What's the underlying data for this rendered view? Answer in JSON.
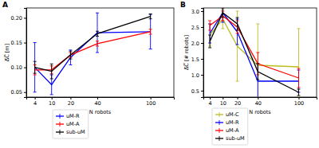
{
  "chart_data": [
    {
      "type": "line",
      "title": "A",
      "xlabel": "N robots",
      "ylabel": "Δ̅C̅ [m]",
      "x": [
        4,
        10,
        20,
        40,
        100
      ],
      "xlim": [
        2,
        135
      ],
      "xticks": [
        4,
        10,
        20,
        40,
        100
      ],
      "ylim": [
        0.04,
        0.22
      ],
      "yticks": [
        0.05,
        {
          "value": 0.1,
          "label": "0.10"
        },
        0.15,
        {
          "value": 0.2,
          "label": "0.20"
        }
      ],
      "grid": false,
      "legend": "below",
      "series": [
        {
          "name": "uM-R",
          "color": "#0000ff",
          "values": [
            0.1,
            0.065,
            0.12,
            0.17,
            0.172
          ],
          "errors": [
            0.05,
            0.02,
            0.015,
            0.04,
            0.035
          ]
        },
        {
          "name": "uM-A",
          "color": "#ff0000",
          "values": [
            0.095,
            0.095,
            0.125,
            0.148,
            0.172
          ],
          "errors": [
            0.01,
            0.008,
            0.005,
            0.005,
            0.005
          ]
        },
        {
          "name": "sub-uM",
          "color": "#000000",
          "values": [
            0.1,
            0.092,
            0.125,
            0.168,
            0.203
          ],
          "errors": [
            0.012,
            0.015,
            0.008,
            0.005,
            0.005
          ]
        }
      ]
    },
    {
      "type": "line",
      "title": "B",
      "xlabel": "N robots",
      "ylabel": "Δ̅C̅ [# robots]",
      "x": [
        4,
        10,
        20,
        40,
        100
      ],
      "xlim": [
        2,
        135
      ],
      "xticks": [
        4,
        10,
        20,
        40,
        100
      ],
      "ylim": [
        0.3,
        3.1
      ],
      "yticks": [
        0.5,
        {
          "value": 1,
          "label": "1.0"
        },
        1.5,
        {
          "value": 2,
          "label": "2.0"
        },
        2.5,
        {
          "value": 3,
          "label": "3.0"
        }
      ],
      "grid": false,
      "legend": "below",
      "series": [
        {
          "name": "uM-C",
          "color": "#bcbd22",
          "values": [
            2.25,
            2.75,
            1.9,
            1.3,
            1.25
          ],
          "errors": [
            0.35,
            0.3,
            1.1,
            1.3,
            1.2
          ]
        },
        {
          "name": "uM-R",
          "color": "#0000ff",
          "values": [
            2.3,
            2.95,
            2.35,
            0.8,
            0.8
          ],
          "errors": [
            0.3,
            0.3,
            0.4,
            0.55,
            0.35
          ]
        },
        {
          "name": "uM-A",
          "color": "#ff0000",
          "values": [
            2.55,
            2.85,
            2.5,
            1.35,
            0.9
          ],
          "errors": [
            0.15,
            0.15,
            0.2,
            0.35,
            0.3
          ]
        },
        {
          "name": "sub-uM",
          "color": "#000000",
          "values": [
            2.05,
            2.95,
            2.6,
            1.1,
            0.45
          ],
          "errors": [
            0.2,
            0.15,
            0.2,
            0.25,
            0.1
          ]
        }
      ]
    }
  ]
}
